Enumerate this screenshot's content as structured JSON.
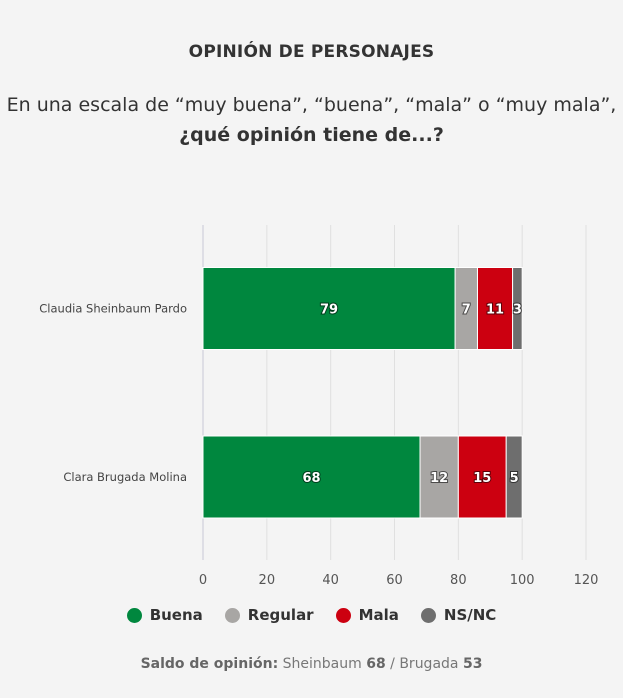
{
  "header": {
    "title": "OPINIÓN DE PERSONAJES",
    "question_line1": "En una escala de “muy buena”, “buena”, “mala” o “muy mala”,",
    "question_line2": "¿qué opinión tiene de...?"
  },
  "chart_data": {
    "type": "bar",
    "orientation": "horizontal",
    "stacked": true,
    "categories": [
      "Claudia Sheinbaum Pardo",
      "Clara Brugada Molina"
    ],
    "series": [
      {
        "name": "Buena",
        "values": [
          79,
          68
        ],
        "color": "#00873e"
      },
      {
        "name": "Regular",
        "values": [
          7,
          12
        ],
        "color": "#a8a6a4"
      },
      {
        "name": "Mala",
        "values": [
          11,
          15
        ],
        "color": "#cc0010"
      },
      {
        "name": "NS/NC",
        "values": [
          3,
          5
        ],
        "color": "#6e6e6e"
      }
    ],
    "xlim": [
      0,
      120
    ],
    "xticks": [
      0,
      20,
      40,
      60,
      80,
      100,
      120
    ],
    "grid": true,
    "legend_position": "bottom"
  },
  "footer": {
    "label": "Saldo de opinión:",
    "name1": "Sheinbaum",
    "value1": "68",
    "separator": "/",
    "name2": "Brugada",
    "value2": "53"
  }
}
